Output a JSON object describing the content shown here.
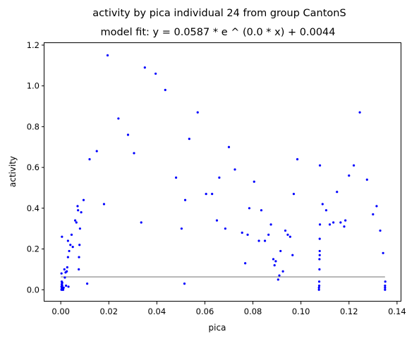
{
  "chart_data": {
    "type": "scatter",
    "title": "activity by pica individual 24 from group CantonS",
    "subtitle": "model fit: y = 0.0587 * e ^ (0.0 * x) + 0.0044",
    "xlabel": "pica",
    "ylabel": "activity",
    "xlim": [
      -0.0068,
      0.1418
    ],
    "ylim": [
      -0.058,
      1.21
    ],
    "x_ticks": [
      0.0,
      0.02,
      0.04,
      0.06,
      0.08,
      0.1,
      0.12,
      0.14
    ],
    "x_tick_labels": [
      "0.00",
      "0.02",
      "0.04",
      "0.06",
      "0.08",
      "0.10",
      "0.12",
      "0.14"
    ],
    "y_ticks": [
      0.0,
      0.2,
      0.4,
      0.6,
      0.8,
      1.0,
      1.2
    ],
    "y_tick_labels": [
      "0.0",
      "0.2",
      "0.4",
      "0.6",
      "0.8",
      "1.0",
      "1.2"
    ],
    "grid": false,
    "legend": "none",
    "colors": {
      "points": "#0000ff",
      "fit_line": "#999999",
      "axes": "#000000"
    },
    "fit_line": {
      "x": [
        0.0,
        0.135
      ],
      "y": [
        0.0631,
        0.0631
      ]
    },
    "series": [
      {
        "points": [
          [
            0.0003,
            0.0
          ],
          [
            0.0004,
            0.005
          ],
          [
            0.0005,
            0.01
          ],
          [
            0.0003,
            0.015
          ],
          [
            0.0006,
            0.02
          ],
          [
            0.0004,
            0.025
          ],
          [
            0.0005,
            0.03
          ],
          [
            0.0007,
            0.005
          ],
          [
            0.0008,
            0.0
          ],
          [
            0.0006,
            0.035
          ],
          [
            0.0004,
            0.04
          ],
          [
            0.0007,
            0.01
          ],
          [
            0.0003,
            0.08
          ],
          [
            0.0005,
            0.26
          ],
          [
            0.001,
            0.0
          ],
          [
            0.0012,
            0.01
          ],
          [
            0.0015,
            0.1
          ],
          [
            0.0017,
            0.06
          ],
          [
            0.002,
            0.085
          ],
          [
            0.0022,
            0.02
          ],
          [
            0.0025,
            0.09
          ],
          [
            0.0027,
            0.11
          ],
          [
            0.003,
            0.16
          ],
          [
            0.003,
            0.24
          ],
          [
            0.0032,
            0.015
          ],
          [
            0.0035,
            0.19
          ],
          [
            0.004,
            0.22
          ],
          [
            0.0045,
            0.27
          ],
          [
            0.005,
            0.21
          ],
          [
            0.006,
            0.34
          ],
          [
            0.0065,
            0.33
          ],
          [
            0.007,
            0.41
          ],
          [
            0.0072,
            0.39
          ],
          [
            0.0075,
            0.1
          ],
          [
            0.0076,
            0.16
          ],
          [
            0.0078,
            0.22
          ],
          [
            0.008,
            0.3
          ],
          [
            0.0085,
            0.38
          ],
          [
            0.0095,
            0.44
          ],
          [
            0.011,
            0.03
          ],
          [
            0.012,
            0.64
          ],
          [
            0.015,
            0.68
          ],
          [
            0.018,
            0.42
          ],
          [
            0.0195,
            1.15
          ],
          [
            0.024,
            0.84
          ],
          [
            0.028,
            0.76
          ],
          [
            0.0305,
            0.67
          ],
          [
            0.0335,
            0.33
          ],
          [
            0.035,
            1.09
          ],
          [
            0.0395,
            1.06
          ],
          [
            0.0435,
            0.98
          ],
          [
            0.048,
            0.55
          ],
          [
            0.0503,
            0.3
          ],
          [
            0.0515,
            0.03
          ],
          [
            0.0518,
            0.44
          ],
          [
            0.0535,
            0.74
          ],
          [
            0.057,
            0.87
          ],
          [
            0.0605,
            0.47
          ],
          [
            0.063,
            0.47
          ],
          [
            0.065,
            0.34
          ],
          [
            0.066,
            0.55
          ],
          [
            0.0685,
            0.3
          ],
          [
            0.07,
            0.7
          ],
          [
            0.0725,
            0.59
          ],
          [
            0.0755,
            0.28
          ],
          [
            0.0768,
            0.13
          ],
          [
            0.0778,
            0.27
          ],
          [
            0.0785,
            0.4
          ],
          [
            0.0805,
            0.53
          ],
          [
            0.0825,
            0.24
          ],
          [
            0.0835,
            0.39
          ],
          [
            0.085,
            0.24
          ],
          [
            0.0865,
            0.27
          ],
          [
            0.0875,
            0.32
          ],
          [
            0.0885,
            0.15
          ],
          [
            0.089,
            0.12
          ],
          [
            0.0895,
            0.14
          ],
          [
            0.0905,
            0.05
          ],
          [
            0.091,
            0.07
          ],
          [
            0.0915,
            0.19
          ],
          [
            0.0925,
            0.09
          ],
          [
            0.0935,
            0.29
          ],
          [
            0.0945,
            0.27
          ],
          [
            0.0955,
            0.26
          ],
          [
            0.0965,
            0.17
          ],
          [
            0.097,
            0.47
          ],
          [
            0.0985,
            0.64
          ],
          [
            0.1075,
            0.0
          ],
          [
            0.1075,
            0.01
          ],
          [
            0.1076,
            0.02
          ],
          [
            0.1076,
            0.04
          ],
          [
            0.1077,
            0.1
          ],
          [
            0.1077,
            0.15
          ],
          [
            0.1078,
            0.17
          ],
          [
            0.1078,
            0.19
          ],
          [
            0.1078,
            0.25
          ],
          [
            0.1079,
            0.32
          ],
          [
            0.1079,
            0.61
          ],
          [
            0.109,
            0.42
          ],
          [
            0.1105,
            0.39
          ],
          [
            0.112,
            0.32
          ],
          [
            0.1135,
            0.33
          ],
          [
            0.115,
            0.48
          ],
          [
            0.1165,
            0.33
          ],
          [
            0.118,
            0.31
          ],
          [
            0.1185,
            0.34
          ],
          [
            0.12,
            0.56
          ],
          [
            0.122,
            0.61
          ],
          [
            0.1245,
            0.87
          ],
          [
            0.1275,
            0.54
          ],
          [
            0.13,
            0.37
          ],
          [
            0.1315,
            0.41
          ],
          [
            0.133,
            0.29
          ],
          [
            0.1342,
            0.18
          ],
          [
            0.135,
            0.0
          ],
          [
            0.135,
            0.01
          ],
          [
            0.135,
            0.02
          ],
          [
            0.1351,
            0.04
          ]
        ]
      }
    ]
  }
}
